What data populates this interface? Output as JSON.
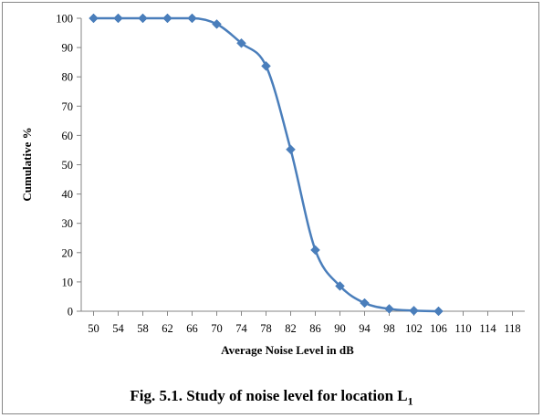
{
  "chart_data": {
    "type": "line",
    "title": "",
    "xlabel": "Average Noise Level in dB",
    "ylabel": "Cumulative %",
    "x_ticks": [
      "50",
      "54",
      "58",
      "62",
      "66",
      "70",
      "74",
      "78",
      "82",
      "86",
      "90",
      "94",
      "98",
      "102",
      "106",
      "110",
      "114",
      "118"
    ],
    "y_ticks": [
      "0",
      "10",
      "20",
      "30",
      "40",
      "50",
      "60",
      "70",
      "80",
      "90",
      "100"
    ],
    "xlim": [
      48,
      120
    ],
    "ylim": [
      0,
      100
    ],
    "grid": false,
    "legend": "none",
    "series": [
      {
        "color": "#4a7ebb",
        "marker": "diamond",
        "smooth": true,
        "points": [
          {
            "x": 50,
            "y": 100
          },
          {
            "x": 54,
            "y": 100
          },
          {
            "x": 58,
            "y": 100
          },
          {
            "x": 62,
            "y": 100
          },
          {
            "x": 66,
            "y": 100
          },
          {
            "x": 70,
            "y": 98
          },
          {
            "x": 74,
            "y": 91.5
          },
          {
            "x": 78,
            "y": 83.7
          },
          {
            "x": 82,
            "y": 55.2
          },
          {
            "x": 86,
            "y": 20.9
          },
          {
            "x": 90,
            "y": 8.6
          },
          {
            "x": 94,
            "y": 2.8
          },
          {
            "x": 98,
            "y": 0.8
          },
          {
            "x": 102,
            "y": 0.2
          },
          {
            "x": 106,
            "y": 0
          }
        ]
      }
    ]
  },
  "caption": {
    "text": "Fig. 5.1.  Study of noise level for location L",
    "subscript": "1"
  }
}
